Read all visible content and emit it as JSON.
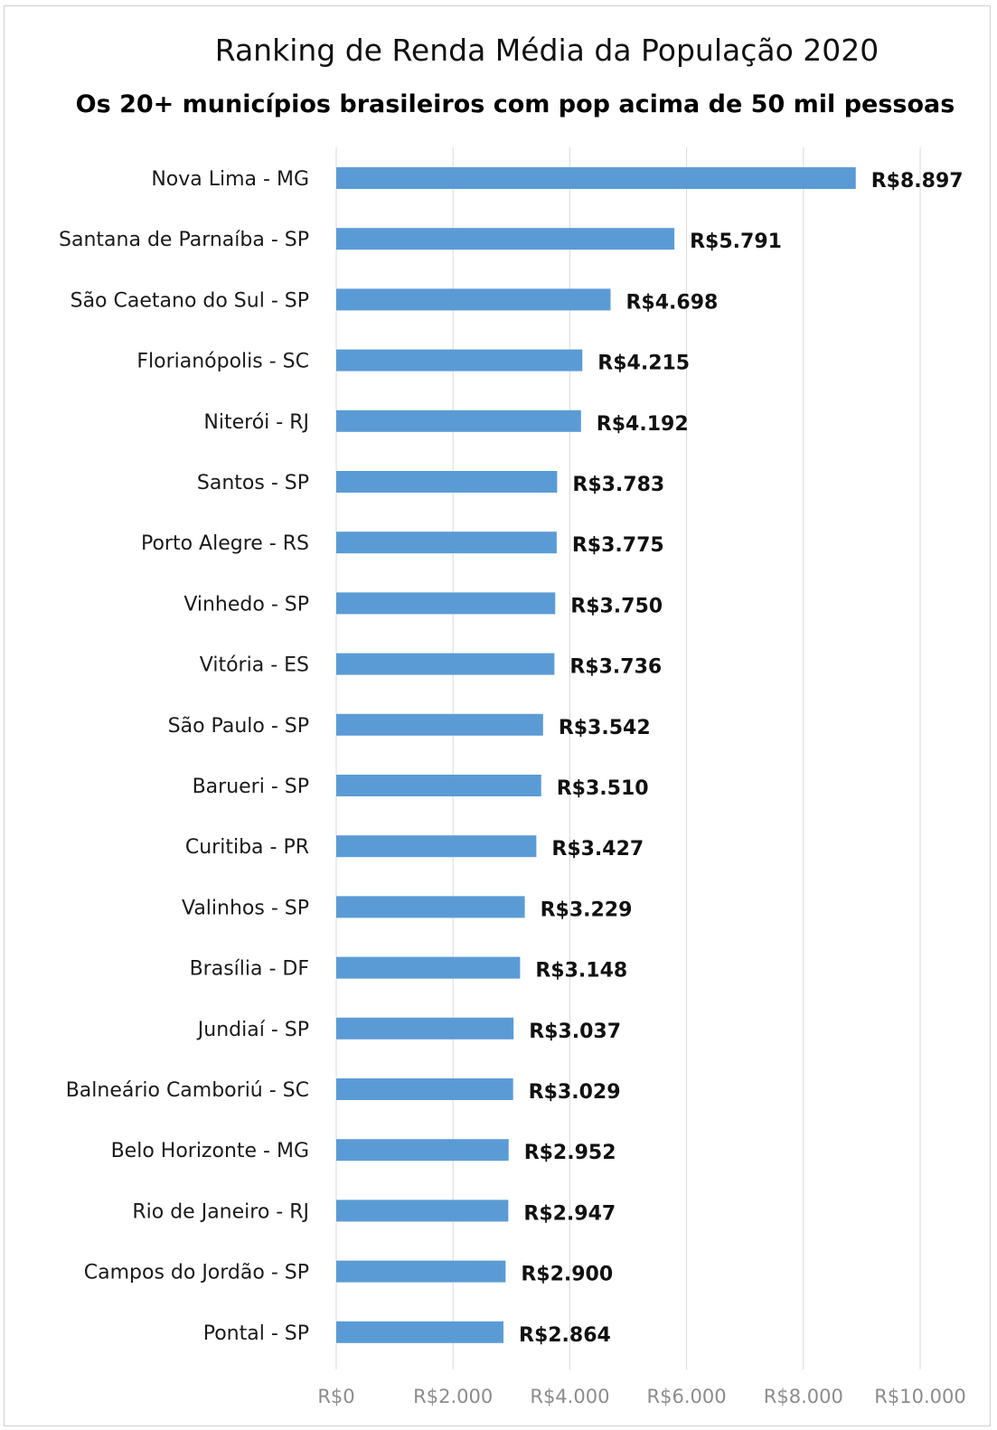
{
  "chart_data": {
    "type": "bar",
    "orientation": "horizontal",
    "title": "Ranking de Renda Média da População 2020",
    "subtitle": "Os 20+ municípios brasileiros com pop acima de 50 mil pessoas",
    "categories": [
      "Nova Lima - MG",
      "Santana de Parnaíba - SP",
      "São Caetano do Sul - SP",
      "Florianópolis - SC",
      "Niterói - RJ",
      "Santos - SP",
      "Porto Alegre - RS",
      "Vinhedo - SP",
      "Vitória - ES",
      "São Paulo - SP",
      "Barueri - SP",
      "Curitiba - PR",
      "Valinhos - SP",
      "Brasília - DF",
      "Jundiaí - SP",
      "Balneário Camboriú - SC",
      "Belo Horizonte - MG",
      "Rio de Janeiro - RJ",
      "Campos do Jordão - SP",
      "Pontal - SP"
    ],
    "values": [
      8897,
      5791,
      4698,
      4215,
      4192,
      3783,
      3775,
      3750,
      3736,
      3542,
      3510,
      3427,
      3229,
      3148,
      3037,
      3029,
      2952,
      2947,
      2900,
      2864
    ],
    "value_labels": [
      "R$8.897",
      "R$5.791",
      "R$4.698",
      "R$4.215",
      "R$4.192",
      "R$3.783",
      "R$3.775",
      "R$3.750",
      "R$3.736",
      "R$3.542",
      "R$3.510",
      "R$3.427",
      "R$3.229",
      "R$3.148",
      "R$3.037",
      "R$3.029",
      "R$2.952",
      "R$2.947",
      "R$2.900",
      "R$2.864"
    ],
    "xlim": [
      0,
      10000
    ],
    "xticks": [
      0,
      2000,
      4000,
      6000,
      8000,
      10000
    ],
    "xtick_labels": [
      "R$0",
      "R$2.000",
      "R$4.000",
      "R$6.000",
      "R$8.000",
      "R$10.000"
    ],
    "grid": true,
    "legend": "none",
    "bar_color": "#5B9BD5",
    "grid_color": "#d9d9d9"
  }
}
